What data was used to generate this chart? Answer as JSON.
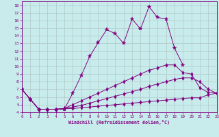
{
  "xlabel": "Windchill (Refroidissement éolien,°C)",
  "background_color": "#c8ecec",
  "line_color": "#800080",
  "grid_color": "#b0c8c8",
  "xlim": [
    0,
    23
  ],
  "ylim": [
    4,
    18.5
  ],
  "xticks": [
    0,
    1,
    2,
    3,
    4,
    5,
    6,
    7,
    8,
    9,
    10,
    11,
    12,
    13,
    14,
    15,
    16,
    17,
    18,
    19,
    20,
    21,
    22,
    23
  ],
  "yticks": [
    4,
    5,
    6,
    7,
    8,
    9,
    10,
    11,
    12,
    13,
    14,
    15,
    16,
    17,
    18
  ],
  "series": [
    [
      7.0,
      5.7,
      4.4,
      4.4,
      4.4,
      4.4,
      6.5,
      8.8,
      11.3,
      13.1,
      14.8,
      14.3,
      13.0,
      16.2,
      14.9,
      17.8,
      16.4,
      16.2,
      12.4,
      10.2,
      null,
      null,
      null,
      null
    ],
    [
      7.0,
      5.7,
      4.4,
      4.4,
      4.4,
      4.5,
      5.0,
      5.5,
      6.0,
      6.5,
      7.0,
      7.5,
      8.0,
      8.5,
      9.0,
      9.5,
      9.8,
      10.2,
      10.2,
      9.2,
      9.0,
      7.2,
      6.6,
      6.5
    ],
    [
      7.0,
      5.7,
      4.4,
      4.4,
      4.4,
      4.5,
      4.7,
      4.9,
      5.2,
      5.5,
      5.8,
      6.1,
      6.4,
      6.7,
      7.0,
      7.4,
      7.7,
      8.0,
      8.3,
      8.5,
      8.5,
      8.0,
      7.0,
      6.5
    ],
    [
      7.0,
      5.7,
      4.4,
      4.4,
      4.4,
      4.5,
      4.5,
      4.6,
      4.7,
      4.8,
      4.9,
      5.0,
      5.1,
      5.2,
      5.3,
      5.4,
      5.5,
      5.6,
      5.7,
      5.8,
      5.9,
      5.9,
      6.3,
      6.5
    ]
  ]
}
